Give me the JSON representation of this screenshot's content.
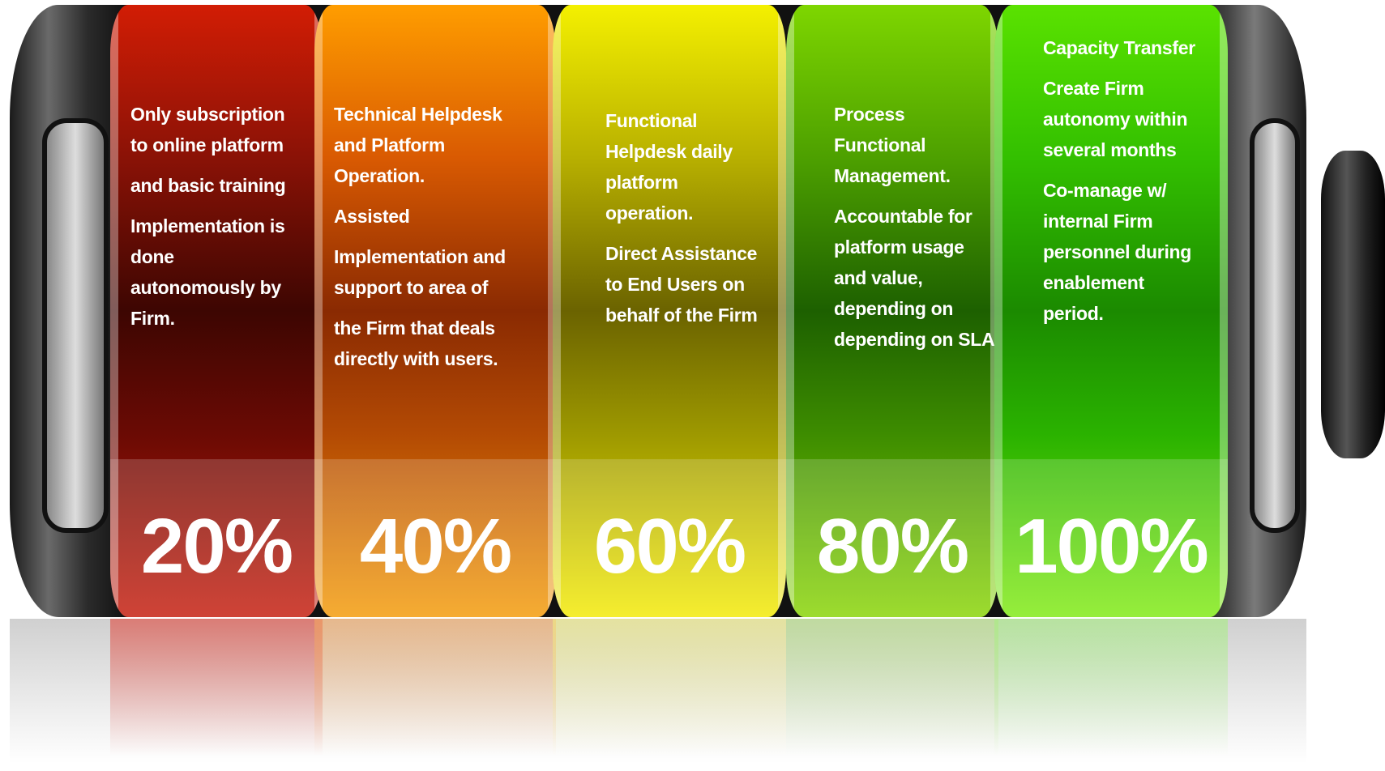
{
  "segments": [
    {
      "percent": "20%",
      "paragraphs": [
        "Only subscription to online platform",
        "and basic training",
        "Implementation is done autonomously by Firm."
      ]
    },
    {
      "percent": "40%",
      "paragraphs": [
        "Technical Helpdesk and Platform Operation.",
        "Assisted",
        "Implementation  and support to area of",
        "the Firm  that deals directly with users."
      ]
    },
    {
      "percent": "60%",
      "paragraphs": [
        "Functional Helpdesk daily platform operation.",
        "Direct Assistance to End Users on behalf of the Firm"
      ]
    },
    {
      "percent": "80%",
      "paragraphs": [
        "Process Functional Management.",
        "Accountable for platform usage and value, depending on depending on SLA"
      ]
    },
    {
      "percent": "100%",
      "paragraphs": [
        "Capacity Transfer",
        "Create Firm autonomy within several months",
        "Co-manage w/ internal Firm personnel during enablement period."
      ]
    }
  ]
}
